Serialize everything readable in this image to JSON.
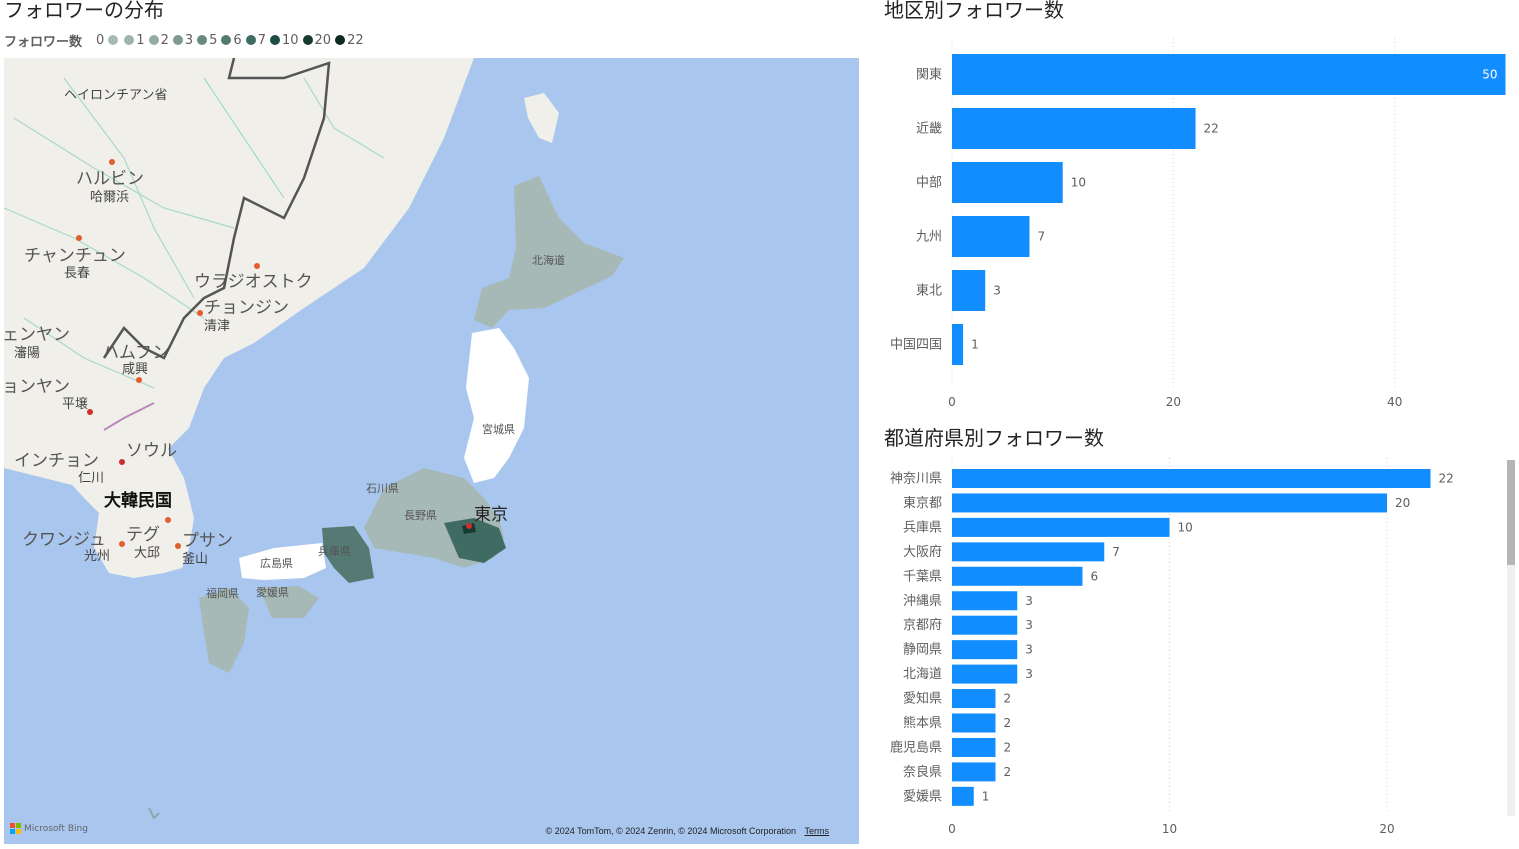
{
  "map_panel": {
    "title": "フォロワーの分布",
    "legend_title": "フォロワー数",
    "legend": [
      {
        "label": "0",
        "color": "#a7b9b6"
      },
      {
        "label": "1",
        "color": "#a0b4b0"
      },
      {
        "label": "2",
        "color": "#94aaa5"
      },
      {
        "label": "3",
        "color": "#7e9894"
      },
      {
        "label": "5",
        "color": "#6a8983"
      },
      {
        "label": "6",
        "color": "#557a73"
      },
      {
        "label": "7",
        "color": "#406b63"
      },
      {
        "label": "10",
        "color": "#1e4d45"
      },
      {
        "label": "20",
        "color": "#153a34"
      },
      {
        "label": "22",
        "color": "#0e2a25"
      }
    ],
    "labels": {
      "heilongjiang": "ヘイロンチアン省",
      "harbin": "ハルビン",
      "harbin_sub": "哈爾浜",
      "changchun": "チャンチュン",
      "changchun_sub": "長春",
      "vladivostok": "ウラジオストク",
      "chongjin": "チョンジン",
      "chongjin_sub": "清津",
      "shenyang": "ェンヤン",
      "shenyang_sub": "瀋陽",
      "hamhung": "ハムフン",
      "hamhung_sub": "咸興",
      "pyongyang": "ョンヤン",
      "pyongyang_sub": "平壌",
      "seoul": "ソウル",
      "incheon": "インチョン",
      "incheon_sub": "仁川",
      "korea": "大韓民国",
      "daegu": "テグ",
      "daegu_sub": "大邱",
      "gwangju": "クワンジュ",
      "gwangju_sub": "光州",
      "busan": "プサン",
      "busan_sub": "釜山",
      "hokkaido": "北海道",
      "miyagi": "宮城県",
      "ishikawa": "石川県",
      "nagano": "長野県",
      "tokyo": "東京",
      "hyogo": "兵庫県",
      "hiroshima": "広島県",
      "fukuoka": "福岡県",
      "ehime": "愛媛県"
    },
    "logo": "Microsoft Bing",
    "copyright": "© 2024 TomTom, © 2024 Zenrin, © 2024 Microsoft Corporation",
    "terms": "Terms"
  },
  "region_chart": {
    "title": "地区別フォロワー数",
    "chart_data": {
      "type": "bar",
      "orientation": "horizontal",
      "categories": [
        "関東",
        "近畿",
        "中部",
        "九州",
        "東北",
        "中国四国"
      ],
      "values": [
        50,
        22,
        10,
        7,
        3,
        1
      ],
      "xlim": [
        0,
        50
      ],
      "xticks": [
        0,
        20,
        40
      ],
      "bar_color": "#118dff",
      "grid": true
    }
  },
  "pref_chart": {
    "title": "都道府県別フォロワー数",
    "chart_data": {
      "type": "bar",
      "orientation": "horizontal",
      "categories": [
        "神奈川県",
        "東京都",
        "兵庫県",
        "大阪府",
        "千葉県",
        "沖縄県",
        "京都府",
        "静岡県",
        "北海道",
        "愛知県",
        "熊本県",
        "鹿児島県",
        "奈良県",
        "愛媛県"
      ],
      "values": [
        22,
        20,
        10,
        7,
        6,
        3,
        3,
        3,
        3,
        2,
        2,
        2,
        2,
        1
      ],
      "xlim": [
        0,
        25
      ],
      "xticks": [
        0,
        10,
        20
      ],
      "bar_color": "#118dff",
      "grid": true
    }
  }
}
